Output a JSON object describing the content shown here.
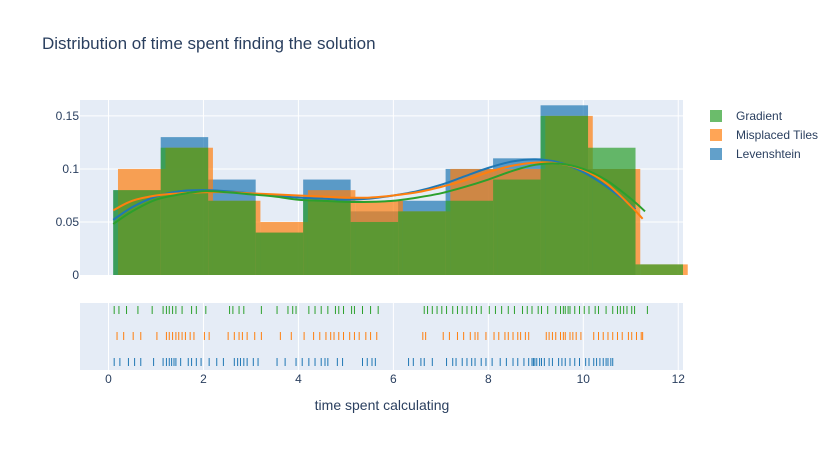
{
  "chart_data": {
    "type": "histogram",
    "title": "Distribution of time spent finding the solution",
    "xlabel": "time spent calculating",
    "ylabel": "",
    "xlim": [
      -0.6,
      12.1
    ],
    "ylim": [
      0,
      0.165
    ],
    "x_ticks": [
      "0",
      "2",
      "4",
      "6",
      "8",
      "10",
      "12"
    ],
    "x_tick_values": [
      0,
      2,
      4,
      6,
      8,
      10,
      12
    ],
    "y_ticks": [
      "0",
      "0.05",
      "0.1",
      "0.15"
    ],
    "y_tick_values": [
      0,
      0.05,
      0.1,
      0.15
    ],
    "grid": true,
    "legend_position": "top-right",
    "series": [
      {
        "name": "Levenshtein",
        "color": "#1f77b4",
        "bins": [
          [
            0.1,
            1.1,
            0.08
          ],
          [
            1.1,
            2.1,
            0.13
          ],
          [
            2.1,
            3.1,
            0.09
          ],
          [
            3.1,
            4.1,
            0.04
          ],
          [
            4.1,
            5.1,
            0.09
          ],
          [
            5.1,
            6.1,
            0.06
          ],
          [
            6.1,
            7.1,
            0.07
          ],
          [
            7.1,
            8.1,
            0.1
          ],
          [
            8.1,
            9.1,
            0.11
          ],
          [
            9.1,
            10.1,
            0.16
          ],
          [
            10.1,
            11.1,
            0.1
          ]
        ],
        "kde": [
          [
            0.1,
            0.052
          ],
          [
            0.5,
            0.064
          ],
          [
            1,
            0.074
          ],
          [
            1.5,
            0.079
          ],
          [
            2,
            0.08
          ],
          [
            2.5,
            0.079
          ],
          [
            3,
            0.077
          ],
          [
            3.5,
            0.075
          ],
          [
            4,
            0.073
          ],
          [
            4.5,
            0.072
          ],
          [
            5,
            0.071
          ],
          [
            5.5,
            0.072
          ],
          [
            6,
            0.075
          ],
          [
            6.5,
            0.079
          ],
          [
            7,
            0.085
          ],
          [
            7.5,
            0.093
          ],
          [
            8,
            0.101
          ],
          [
            8.5,
            0.107
          ],
          [
            9,
            0.109
          ],
          [
            9.5,
            0.106
          ],
          [
            10,
            0.097
          ],
          [
            10.5,
            0.083
          ],
          [
            11.1,
            0.062
          ]
        ],
        "rug": [
          0.12,
          0.24,
          0.42,
          0.55,
          0.68,
          0.95,
          1.15,
          1.22,
          1.28,
          1.33,
          1.38,
          1.42,
          1.52,
          1.68,
          1.75,
          1.85,
          1.95,
          2.12,
          2.28,
          2.42,
          2.65,
          2.72,
          2.78,
          2.85,
          2.92,
          3.05,
          3.15,
          3.55,
          3.72,
          3.95,
          4.08,
          4.22,
          4.35,
          4.48,
          4.56,
          4.62,
          4.82,
          4.93,
          5.35,
          5.45,
          5.55,
          5.62,
          6.32,
          6.42,
          6.58,
          6.65,
          6.82,
          7.12,
          7.25,
          7.32,
          7.45,
          7.55,
          7.65,
          7.72,
          7.85,
          7.95,
          8.08,
          8.25,
          8.38,
          8.52,
          8.62,
          8.75,
          8.85,
          8.92,
          8.95,
          8.98,
          9.02,
          9.08,
          9.12,
          9.18,
          9.28,
          9.35,
          9.48,
          9.55,
          9.62,
          9.72,
          9.82,
          9.92,
          10.05,
          10.12,
          10.22,
          10.28,
          10.35,
          10.42,
          10.48,
          10.52,
          10.58,
          10.62
        ]
      },
      {
        "name": "Misplaced Tiles",
        "color": "#ff7f0e",
        "bins": [
          [
            0.2,
            1.2,
            0.1
          ],
          [
            1.2,
            2.2,
            0.12
          ],
          [
            2.2,
            3.2,
            0.07
          ],
          [
            3.2,
            4.2,
            0.05
          ],
          [
            4.2,
            5.2,
            0.08
          ],
          [
            5.2,
            6.2,
            0.07
          ],
          [
            6.2,
            7.2,
            0.06
          ],
          [
            7.2,
            8.2,
            0.1
          ],
          [
            8.2,
            9.2,
            0.1
          ],
          [
            9.2,
            10.2,
            0.15
          ],
          [
            10.2,
            11.2,
            0.1
          ],
          [
            11.2,
            12.2,
            0.01
          ]
        ],
        "kde": [
          [
            0.1,
            0.061
          ],
          [
            0.5,
            0.07
          ],
          [
            1,
            0.075
          ],
          [
            1.5,
            0.077
          ],
          [
            2,
            0.078
          ],
          [
            2.5,
            0.078
          ],
          [
            3,
            0.077
          ],
          [
            3.5,
            0.076
          ],
          [
            4,
            0.075
          ],
          [
            4.5,
            0.074
          ],
          [
            5,
            0.073
          ],
          [
            5.5,
            0.073
          ],
          [
            6,
            0.075
          ],
          [
            6.5,
            0.078
          ],
          [
            7,
            0.083
          ],
          [
            7.5,
            0.089
          ],
          [
            8,
            0.097
          ],
          [
            8.5,
            0.103
          ],
          [
            9,
            0.106
          ],
          [
            9.5,
            0.105
          ],
          [
            10,
            0.099
          ],
          [
            10.5,
            0.086
          ],
          [
            11,
            0.065
          ],
          [
            11.25,
            0.053
          ]
        ],
        "rug": [
          0.18,
          0.32,
          0.52,
          0.68,
          1.02,
          1.22,
          1.28,
          1.35,
          1.42,
          1.48,
          1.55,
          1.62,
          1.72,
          1.8,
          2.02,
          2.12,
          2.52,
          2.65,
          2.75,
          2.82,
          2.92,
          3.08,
          3.22,
          3.62,
          3.85,
          4.12,
          4.32,
          4.45,
          4.58,
          4.68,
          4.75,
          4.85,
          4.95,
          5.08,
          5.18,
          5.28,
          5.42,
          5.52,
          5.65,
          6.62,
          6.68,
          7.05,
          7.18,
          7.35,
          7.48,
          7.62,
          7.72,
          7.78,
          7.95,
          8.12,
          8.22,
          8.35,
          8.42,
          8.52,
          8.62,
          8.68,
          8.78,
          8.85,
          9.22,
          9.28,
          9.35,
          9.42,
          9.52,
          9.58,
          9.62,
          9.72,
          9.78,
          9.85,
          9.95,
          10.22,
          10.32,
          10.42,
          10.52,
          10.62,
          10.72,
          10.82,
          10.95,
          11.02,
          11.12,
          11.25,
          11.22
        ]
      },
      {
        "name": "Gradient",
        "color": "#2ca02c",
        "bins": [
          [
            0.1,
            1.1,
            0.08
          ],
          [
            1.1,
            2.1,
            0.12
          ],
          [
            2.1,
            3.1,
            0.07
          ],
          [
            3.1,
            4.1,
            0.04
          ],
          [
            4.1,
            5.1,
            0.07
          ],
          [
            5.1,
            6.1,
            0.05
          ],
          [
            6.1,
            7.1,
            0.06
          ],
          [
            7.1,
            8.1,
            0.07
          ],
          [
            8.1,
            9.1,
            0.09
          ],
          [
            9.1,
            10.1,
            0.15
          ],
          [
            10.1,
            11.1,
            0.12
          ],
          [
            11.1,
            12.1,
            0.01
          ]
        ],
        "kde": [
          [
            0.1,
            0.048
          ],
          [
            0.5,
            0.06
          ],
          [
            1,
            0.071
          ],
          [
            1.5,
            0.076
          ],
          [
            2,
            0.079
          ],
          [
            2.5,
            0.078
          ],
          [
            3,
            0.076
          ],
          [
            3.5,
            0.074
          ],
          [
            4,
            0.071
          ],
          [
            4.5,
            0.07
          ],
          [
            5,
            0.069
          ],
          [
            5.5,
            0.069
          ],
          [
            6,
            0.07
          ],
          [
            6.5,
            0.073
          ],
          [
            7,
            0.077
          ],
          [
            7.5,
            0.083
          ],
          [
            8,
            0.09
          ],
          [
            8.5,
            0.098
          ],
          [
            9,
            0.104
          ],
          [
            9.5,
            0.105
          ],
          [
            10,
            0.1
          ],
          [
            10.5,
            0.089
          ],
          [
            11,
            0.072
          ],
          [
            11.3,
            0.06
          ]
        ],
        "rug": [
          0.12,
          0.22,
          0.38,
          0.62,
          0.92,
          1.15,
          1.22,
          1.28,
          1.35,
          1.42,
          1.55,
          1.75,
          1.85,
          2.05,
          2.55,
          2.62,
          2.75,
          2.85,
          3.22,
          3.55,
          3.78,
          3.88,
          3.95,
          4.22,
          4.35,
          4.48,
          4.62,
          4.78,
          4.85,
          4.95,
          5.12,
          5.18,
          5.35,
          5.52,
          5.68,
          6.65,
          6.72,
          6.82,
          6.92,
          7.02,
          7.12,
          7.25,
          7.35,
          7.45,
          7.55,
          7.65,
          7.75,
          7.85,
          8.02,
          8.15,
          8.28,
          8.42,
          8.55,
          8.72,
          8.82,
          8.92,
          9.05,
          9.12,
          9.25,
          9.42,
          9.52,
          9.58,
          9.62,
          9.68,
          9.72,
          9.82,
          9.92,
          10.02,
          10.12,
          10.25,
          10.32,
          10.48,
          10.62,
          10.72,
          10.78,
          10.85,
          10.92,
          11.02,
          11.08,
          11.35
        ]
      }
    ]
  }
}
